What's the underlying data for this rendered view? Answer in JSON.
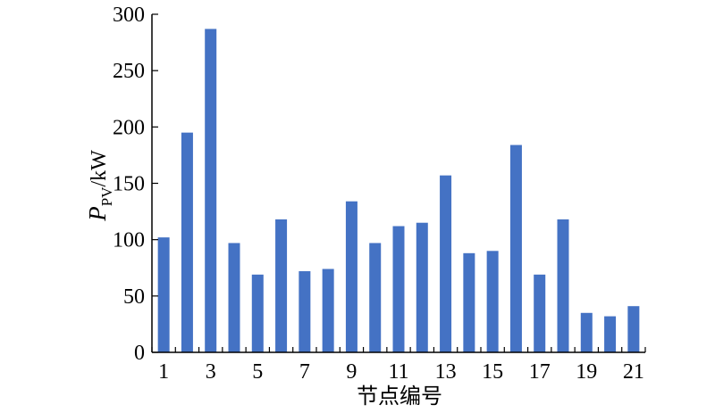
{
  "chart_data": {
    "type": "bar",
    "categories": [
      "1",
      "2",
      "3",
      "4",
      "5",
      "6",
      "7",
      "8",
      "9",
      "10",
      "11",
      "12",
      "13",
      "14",
      "15",
      "16",
      "17",
      "18",
      "19",
      "20",
      "21"
    ],
    "values": [
      102,
      195,
      287,
      97,
      69,
      118,
      72,
      74,
      134,
      97,
      112,
      115,
      157,
      88,
      90,
      184,
      69,
      118,
      35,
      32,
      41
    ],
    "xtick_labels": [
      "1",
      "3",
      "5",
      "7",
      "9",
      "11",
      "13",
      "15",
      "17",
      "19",
      "21"
    ],
    "xtick_categories": [
      "1",
      "3",
      "5",
      "7",
      "9",
      "11",
      "13",
      "15",
      "17",
      "19",
      "21"
    ],
    "ytick_labels": [
      "0",
      "50",
      "100",
      "150",
      "200",
      "250",
      "300"
    ],
    "yticks": [
      0,
      50,
      100,
      150,
      200,
      250,
      300
    ],
    "ylim": [
      0,
      300
    ],
    "xlabel": "节点编号",
    "ylabel": {
      "main": "P",
      "sub": "PV",
      "unit": "/kW"
    },
    "bar_color": "#4472C4",
    "grid": false,
    "legend": "none"
  }
}
